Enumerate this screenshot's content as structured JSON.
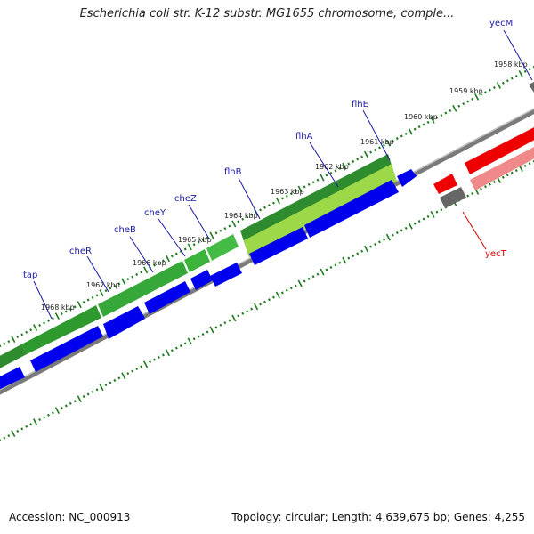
{
  "title": "Escherichia coli str. K-12 substr. MG1655 chromosome, comple...",
  "footer": {
    "accession": "Accession: NC_000913",
    "summary": "Topology: circular; Length: 4,639,675 bp; Genes: 4,255"
  },
  "colors": {
    "forward_cds": "#0000ee",
    "reverse_cds": "#ee0000",
    "reverse_cds_light": "#f08a8a",
    "gene_track": "#2e8b2e",
    "gene_track_light": "#a8e04a",
    "backbone": "#888888",
    "tick": "#1e7a1e",
    "label_forward": "#1a1aa8",
    "label_reverse": "#d00000"
  },
  "kbp_ticks": [
    "1958 kbp",
    "1959 kbp",
    "1960 kbp",
    "1961 kbp",
    "1962 kbp",
    "1963 kbp",
    "1964 kbp",
    "1965 kbp",
    "1966 kbp",
    "1967 kbp",
    "1968 kbp"
  ],
  "gene_labels": {
    "yecM": "yecM",
    "flhE": "flhE",
    "flhA": "flhA",
    "flhB": "flhB",
    "cheZ": "cheZ",
    "cheY": "cheY",
    "cheB": "cheB",
    "cheR": "cheR",
    "tap": "tap",
    "yecT": "yecT"
  }
}
